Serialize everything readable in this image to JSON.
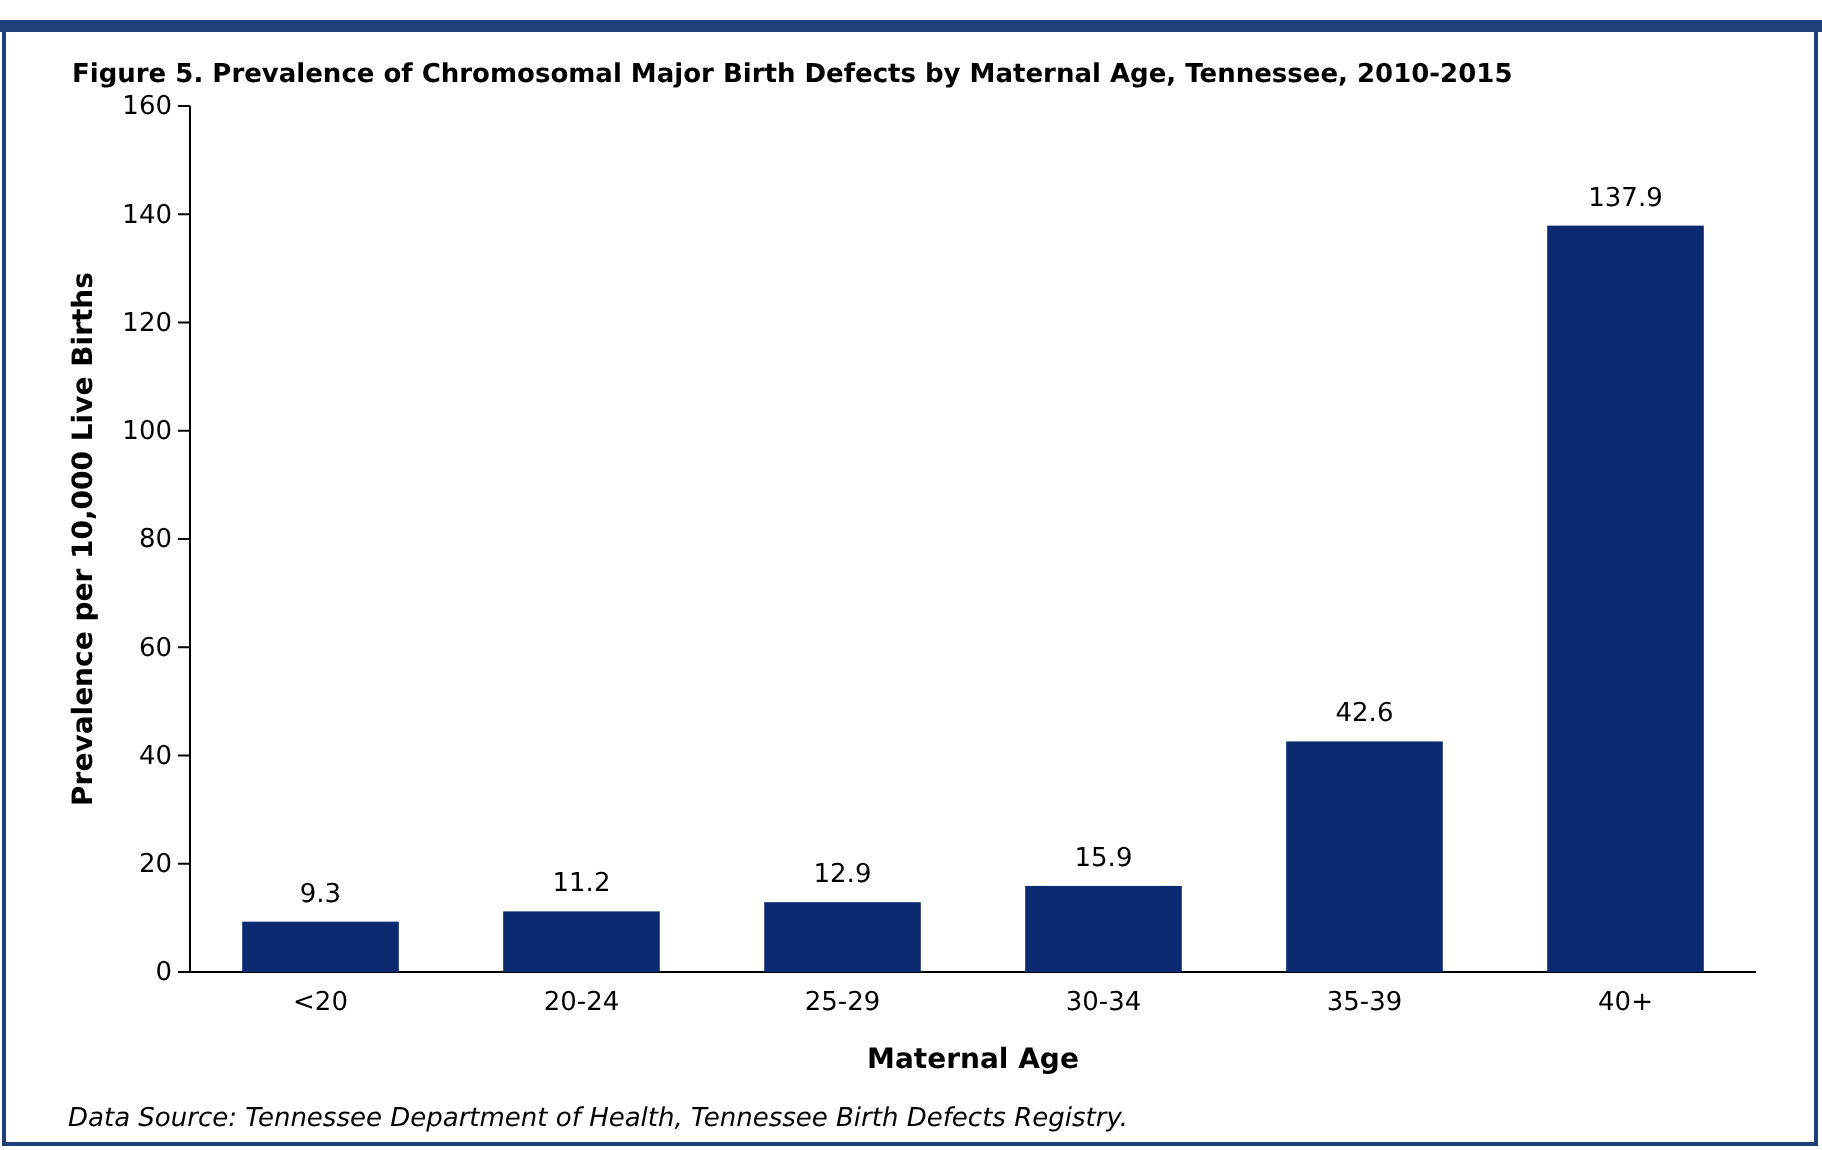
{
  "chart_data": {
    "type": "bar",
    "title": "Figure 5. Prevalence of Chromosomal Major Birth Defects by Maternal Age, Tennessee, 2010-2015",
    "xlabel": "Maternal Age",
    "ylabel": "Prevalence per 10,000 Live Births",
    "categories": [
      "<20",
      "20-24",
      "25-29",
      "30-34",
      "35-39",
      "40+"
    ],
    "values": [
      9.3,
      11.2,
      12.9,
      15.9,
      42.6,
      137.9
    ],
    "color": "#0b2a72",
    "ylim": [
      0,
      160
    ],
    "yticks": [
      0,
      20,
      40,
      60,
      80,
      100,
      120,
      140,
      160
    ],
    "grid": false,
    "data_labels": true,
    "annotations": [
      "Data Source: Tennessee Department of Health, Tennessee Birth Defects Registry."
    ]
  }
}
